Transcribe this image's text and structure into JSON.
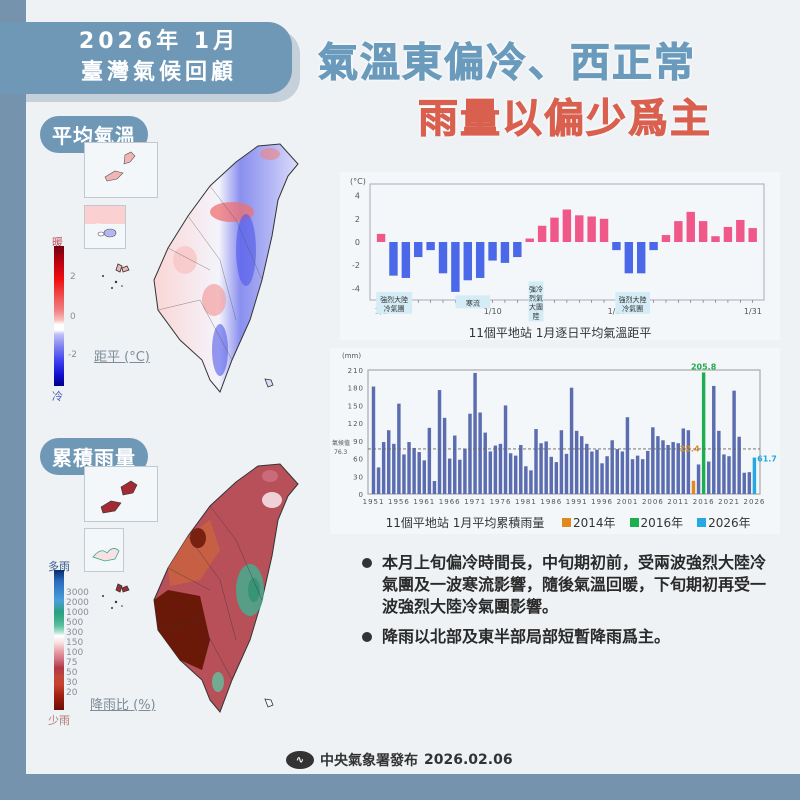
{
  "header": {
    "year_month": "2026年 1月",
    "title": "臺灣氣候回顧",
    "headline_line1": "氣溫東偏冷、西正常",
    "headline_line2": "雨量以偏少爲主",
    "headline1_color": "#6a9abc",
    "headline2_color": "#d9604f"
  },
  "temp_map": {
    "section_label": "平均氣溫",
    "legend_top": "暖",
    "legend_bottom": "冷",
    "legend_ticks": [
      "2",
      "0",
      "-2"
    ],
    "legend_title": "距平 (°C)"
  },
  "rain_map": {
    "section_label": "累積雨量",
    "legend_top": "多雨",
    "legend_bottom": "少雨",
    "legend_ticks": [
      "3000",
      "2000",
      "1000",
      "500",
      "300",
      "150",
      "100",
      "75",
      "50",
      "30",
      "20"
    ],
    "legend_title": "降雨比 (%)"
  },
  "chart_data": [
    {
      "type": "bar",
      "title": "11個平地站 1月逐日平均氣溫距平",
      "ylabel": "(°C)",
      "xlabel": "",
      "ylim": [
        -5,
        5
      ],
      "yticks": [
        4,
        2,
        0,
        -2,
        -4
      ],
      "x_tick_labels": [
        "1/1",
        "1/10",
        "1/20",
        "1/31"
      ],
      "categories": [
        "1/1",
        "1/2",
        "1/3",
        "1/4",
        "1/5",
        "1/6",
        "1/7",
        "1/8",
        "1/9",
        "1/10",
        "1/11",
        "1/12",
        "1/13",
        "1/14",
        "1/15",
        "1/16",
        "1/17",
        "1/18",
        "1/19",
        "1/20",
        "1/21",
        "1/22",
        "1/23",
        "1/24",
        "1/25",
        "1/26",
        "1/27",
        "1/28",
        "1/29",
        "1/30",
        "1/31"
      ],
      "values": [
        0.7,
        -2.9,
        -3.1,
        -1.3,
        -0.7,
        -2.7,
        -4.3,
        -3.3,
        -3.1,
        -1.6,
        -1.8,
        -1.3,
        0.3,
        1.4,
        2.1,
        2.8,
        2.3,
        2.2,
        2.0,
        -0.7,
        -2.7,
        -2.7,
        -0.7,
        0.6,
        1.8,
        2.6,
        1.8,
        0.5,
        1.3,
        1.9,
        1.2
      ],
      "positive_color": "#f0588a",
      "negative_color": "#4a68e8",
      "annotations": [
        {
          "text": "強烈大陸\n冷氣團",
          "x": "1/2-1/4"
        },
        {
          "text": "寒流",
          "x": "1/7-1/9"
        },
        {
          "text": "強烈大陸冷氣團",
          "x": "1/13",
          "vertical": true
        },
        {
          "text": "強烈大陸\n冷氣團",
          "x": "1/21-1/22"
        }
      ]
    },
    {
      "type": "bar",
      "title": "11個平地站  1月平均累積雨量",
      "ylabel": "(mm)",
      "xlabel": "",
      "ylim": [
        0,
        210
      ],
      "yticks": [
        210,
        180,
        150,
        120,
        90,
        60,
        30,
        0
      ],
      "x_tick_labels": [
        "1951",
        "1956",
        "1961",
        "1966",
        "1971",
        "1976",
        "1981",
        "1986",
        "1991",
        "1996",
        "2001",
        "2006",
        "2011",
        "2016",
        "2021",
        "2026"
      ],
      "reference_line": {
        "label": "氣候值",
        "value": 76.3
      },
      "categories": [
        "1951",
        "1952",
        "1953",
        "1954",
        "1955",
        "1956",
        "1957",
        "1958",
        "1959",
        "1960",
        "1961",
        "1962",
        "1963",
        "1964",
        "1965",
        "1966",
        "1967",
        "1968",
        "1969",
        "1970",
        "1971",
        "1972",
        "1973",
        "1974",
        "1975",
        "1976",
        "1977",
        "1978",
        "1979",
        "1980",
        "1981",
        "1982",
        "1983",
        "1984",
        "1985",
        "1986",
        "1987",
        "1988",
        "1989",
        "1990",
        "1991",
        "1992",
        "1993",
        "1994",
        "1995",
        "1996",
        "1997",
        "1998",
        "1999",
        "2000",
        "2001",
        "2002",
        "2003",
        "2004",
        "2005",
        "2006",
        "2007",
        "2008",
        "2009",
        "2010",
        "2011",
        "2012",
        "2013",
        "2014",
        "2015",
        "2016",
        "2017",
        "2018",
        "2019",
        "2020",
        "2021",
        "2022",
        "2023",
        "2024",
        "2025",
        "2026"
      ],
      "values": [
        182,
        45,
        88,
        108,
        85,
        153,
        67,
        88,
        78,
        71,
        57,
        112,
        22,
        176,
        129,
        60,
        99,
        58,
        77,
        136,
        205,
        138,
        104,
        72,
        82,
        85,
        150,
        69,
        65,
        83,
        47,
        40,
        110,
        86,
        89,
        63,
        54,
        108,
        68,
        180,
        107,
        98,
        85,
        72,
        75,
        52,
        64,
        91,
        76,
        72,
        130,
        59,
        65,
        59,
        73,
        113,
        98,
        91,
        83,
        88,
        86,
        111,
        108,
        22.4,
        50,
        205.8,
        55,
        183,
        107,
        67,
        64,
        175,
        97,
        36,
        37,
        61.7
      ],
      "default_color": "#5b6db0",
      "highlight": [
        {
          "year": "2014",
          "value": 22.4,
          "label": "22.4",
          "color": "#e08a1e"
        },
        {
          "year": "2016",
          "value": 205.8,
          "label": "205.8",
          "color": "#1fae4f"
        },
        {
          "year": "2026",
          "value": 61.7,
          "label": "61.7",
          "color": "#27a8e0"
        }
      ],
      "legend": [
        {
          "label": "2014年",
          "color": "#e08a1e"
        },
        {
          "label": "2016年",
          "color": "#1fae4f"
        },
        {
          "label": "2026年",
          "color": "#27a8e0"
        }
      ]
    }
  ],
  "summary": {
    "bullets": [
      "本月上旬偏冷時間長，中旬期初前，受兩波強烈大陸冷氣團及一波寒流影響，隨後氣溫回暖，下旬期初再受一波強烈大陸冷氣團影響。",
      "降雨以北部及東半部局部短暫降雨爲主。"
    ]
  },
  "footer": {
    "publisher": "中央氣象署發布",
    "date": "2026.02.06"
  }
}
